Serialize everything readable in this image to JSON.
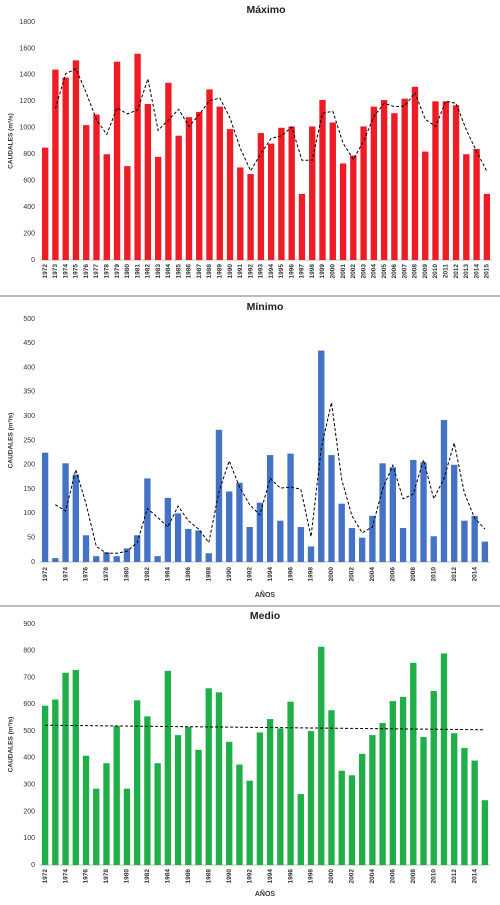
{
  "chart_data": [
    {
      "type": "bar",
      "title": "Máximo",
      "xlabel": "",
      "ylabel": "CAUDALES (m³/s)",
      "ylim": [
        0,
        1800
      ],
      "yticks": [
        "0",
        "200",
        "400",
        "600",
        "800",
        "1000",
        "1200",
        "1400",
        "1600",
        "1800"
      ],
      "categories": [
        "1972",
        "1973",
        "1974",
        "1975",
        "1976",
        "1977",
        "1978",
        "1979",
        "1980",
        "1981",
        "1982",
        "1983",
        "1984",
        "1985",
        "1986",
        "1987",
        "1988",
        "1989",
        "1990",
        "1991",
        "1992",
        "1993",
        "1994",
        "1995",
        "1996",
        "1997",
        "1998",
        "1999",
        "2000",
        "2001",
        "2002",
        "2003",
        "2004",
        "2005",
        "2006",
        "2007",
        "2008",
        "2009",
        "2010",
        "2011",
        "2012",
        "2013",
        "2014",
        "2015"
      ],
      "xtick_labels": [
        "1972",
        "1973",
        "1974",
        "1975",
        "1976",
        "1977",
        "1978",
        "1979",
        "1980",
        "1981",
        "1982",
        "1983",
        "1984",
        "1985",
        "1986",
        "1987",
        "1988",
        "1989",
        "1990",
        "1991",
        "1992",
        "1993",
        "1994",
        "1995",
        "1996",
        "1997",
        "1998",
        "1999",
        "2000",
        "2001",
        "2002",
        "2003",
        "2004",
        "2005",
        "2006",
        "2007",
        "2008",
        "2009",
        "2010",
        "2011",
        "2012",
        "2013",
        "2014",
        "2015"
      ],
      "values": [
        850,
        1440,
        1380,
        1510,
        1020,
        1100,
        800,
        1500,
        710,
        1560,
        1180,
        780,
        1340,
        940,
        1080,
        1120,
        1290,
        1160,
        990,
        700,
        650,
        960,
        880,
        1000,
        1010,
        500,
        1010,
        1210,
        1040,
        730,
        790,
        1010,
        1160,
        1210,
        1110,
        1220,
        1310,
        820,
        1200,
        1200,
        1170,
        800,
        840,
        500
      ],
      "trend": [
        null,
        1145,
        1410,
        1445,
        1265,
        1060,
        950,
        1150,
        1105,
        1135,
        1370,
        980,
        1060,
        1140,
        1010,
        1100,
        1205,
        1225,
        1075,
        845,
        675,
        805,
        920,
        940,
        1005,
        755,
        755,
        1110,
        1125,
        885,
        760,
        900,
        1085,
        1185,
        1160,
        1165,
        1265,
        1065,
        1010,
        1200,
        1185,
        985,
        820,
        670
      ],
      "bar_color": "#ee1c25",
      "trend_style": "dashed-black"
    },
    {
      "type": "bar",
      "title": "Mínimo",
      "xlabel": "AÑOS",
      "ylabel": "CAUDALES (m³/s)",
      "ylim": [
        0,
        500
      ],
      "yticks": [
        "0",
        "50",
        "100",
        "150",
        "200",
        "250",
        "300",
        "350",
        "400",
        "450",
        "500"
      ],
      "categories": [
        "1972",
        "1973",
        "1974",
        "1975",
        "1976",
        "1977",
        "1978",
        "1979",
        "1980",
        "1981",
        "1982",
        "1983",
        "1984",
        "1985",
        "1986",
        "1987",
        "1988",
        "1989",
        "1990",
        "1991",
        "1992",
        "1993",
        "1994",
        "1995",
        "1996",
        "1997",
        "1998",
        "1999",
        "2000",
        "2001",
        "2002",
        "2003",
        "2004",
        "2005",
        "2006",
        "2007",
        "2008",
        "2009",
        "2010",
        "2011",
        "2012",
        "2013",
        "2014",
        "2015"
      ],
      "xtick_labels": [
        "1972",
        "",
        "1974",
        "",
        "1976",
        "",
        "1978",
        "",
        "1980",
        "",
        "1982",
        "",
        "1984",
        "",
        "1986",
        "",
        "1988",
        "",
        "1990",
        "",
        "1992",
        "",
        "1994",
        "",
        "1996",
        "",
        "1998",
        "",
        "2000",
        "",
        "2002",
        "",
        "2004",
        "",
        "2006",
        "",
        "2008",
        "",
        "2010",
        "",
        "2012",
        "",
        "2014",
        ""
      ],
      "values": [
        225,
        8,
        203,
        180,
        55,
        12,
        20,
        12,
        28,
        55,
        172,
        12,
        132,
        100,
        68,
        65,
        18,
        272,
        145,
        163,
        72,
        122,
        220,
        85,
        223,
        72,
        32,
        435,
        220,
        120,
        70,
        50,
        95,
        203,
        195,
        70,
        210,
        205,
        53,
        292,
        200,
        85,
        95,
        42
      ],
      "trend": [
        null,
        118,
        105,
        190,
        120,
        32,
        18,
        18,
        22,
        40,
        110,
        92,
        72,
        115,
        85,
        68,
        40,
        145,
        208,
        155,
        118,
        97,
        172,
        152,
        154,
        150,
        52,
        235,
        328,
        170,
        95,
        60,
        72,
        150,
        199,
        130,
        140,
        210,
        130,
        172,
        245,
        142,
        90,
        68
      ],
      "bar_color": "#4472c4",
      "trend_style": "dashed-black"
    },
    {
      "type": "bar",
      "title": "Medio",
      "xlabel": "AÑOS",
      "ylabel": "CAUDALES (m³/s)",
      "ylim": [
        0,
        900
      ],
      "yticks": [
        "0",
        "100",
        "200",
        "300",
        "400",
        "500",
        "600",
        "700",
        "800",
        "900"
      ],
      "categories": [
        "1972",
        "1973",
        "1974",
        "1975",
        "1976",
        "1977",
        "1978",
        "1979",
        "1980",
        "1981",
        "1982",
        "1983",
        "1984",
        "1985",
        "1986",
        "1987",
        "1988",
        "1989",
        "1990",
        "1991",
        "1992",
        "1993",
        "1994",
        "1995",
        "1996",
        "1997",
        "1998",
        "1999",
        "2000",
        "2001",
        "2002",
        "2003",
        "2004",
        "2005",
        "2006",
        "2007",
        "2008",
        "2009",
        "2010",
        "2011",
        "2012",
        "2013",
        "2014",
        "2015"
      ],
      "xtick_labels": [
        "1972",
        "",
        "1974",
        "",
        "1976",
        "",
        "1978",
        "",
        "1980",
        "",
        "1982",
        "",
        "1984",
        "",
        "1986",
        "",
        "1988",
        "",
        "1990",
        "",
        "1992",
        "",
        "1994",
        "",
        "1996",
        "",
        "1998",
        "",
        "2000",
        "",
        "2002",
        "",
        "2004",
        "",
        "2006",
        "",
        "2008",
        "",
        "2010",
        "",
        "2012",
        "",
        "2014",
        ""
      ],
      "values": [
        595,
        618,
        718,
        728,
        408,
        285,
        380,
        520,
        285,
        615,
        555,
        380,
        725,
        485,
        515,
        430,
        660,
        645,
        460,
        375,
        315,
        495,
        545,
        510,
        610,
        265,
        500,
        815,
        578,
        352,
        335,
        415,
        485,
        530,
        612,
        628,
        755,
        478,
        650,
        790,
        492,
        437,
        390,
        242
      ],
      "trend_linear": [
        522,
        505
      ],
      "bar_color": "#1fae48",
      "trend_style": "dashed-black"
    }
  ]
}
